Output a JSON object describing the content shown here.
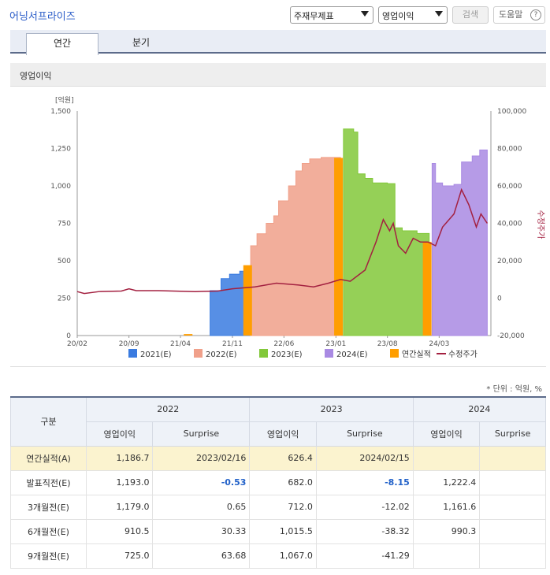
{
  "header": {
    "title": "어닝서프라이즈",
    "select_subject": "주재무제표",
    "select_metric": "영업이익",
    "search_label": "검색",
    "help_label": "도움말",
    "help_icon_glyph": "?"
  },
  "tabs": [
    {
      "label": "연간",
      "active": true
    },
    {
      "label": "분기",
      "active": false
    }
  ],
  "section_title": "영업이익",
  "chart_data": {
    "type": "area",
    "y_unit_label": "[억원]",
    "y_left_ticks": [
      "1,500",
      "1,250",
      "1,000",
      "750",
      "500",
      "250",
      "0"
    ],
    "y_left_range": [
      0,
      1500
    ],
    "y_right_label": "수정주가",
    "y_right_ticks": [
      "100,000",
      "80,000",
      "60,000",
      "40,000",
      "20,000",
      "0",
      "-20,000"
    ],
    "y_right_range": [
      -20000,
      100000
    ],
    "x_ticks": [
      "20/02",
      "20/09",
      "21/04",
      "21/11",
      "22/06",
      "23/01",
      "23/08",
      "24/03"
    ],
    "x_range": [
      "2020-02",
      "2024-09"
    ],
    "legend": [
      {
        "label": "2021(E)",
        "color": "#3a7be0",
        "kind": "square"
      },
      {
        "label": "2022(E)",
        "color": "#f0a08a",
        "kind": "square"
      },
      {
        "label": "2023(E)",
        "color": "#82c83a",
        "kind": "square"
      },
      {
        "label": "2024(E)",
        "color": "#a98ae3",
        "kind": "square"
      },
      {
        "label": "연간실적",
        "color": "#ff9e00",
        "kind": "square"
      },
      {
        "label": "수정주가",
        "color": "#a32040",
        "kind": "line"
      }
    ],
    "estimate_series": [
      {
        "name": "2021(E)",
        "color": "#3a7be0",
        "points": [
          [
            "2021-08-01",
            300
          ],
          [
            "2021-09-15",
            380
          ],
          [
            "2021-10-20",
            410
          ],
          [
            "2021-12-01",
            430
          ],
          [
            "2022-01-15",
            430
          ]
        ]
      },
      {
        "name": "2022(E)",
        "color": "#f0a08a",
        "points": [
          [
            "2022-01-15",
            600
          ],
          [
            "2022-02-10",
            680
          ],
          [
            "2022-03-20",
            750
          ],
          [
            "2022-04-20",
            800
          ],
          [
            "2022-05-10",
            900
          ],
          [
            "2022-06-20",
            1000
          ],
          [
            "2022-07-20",
            1100
          ],
          [
            "2022-08-15",
            1150
          ],
          [
            "2022-09-15",
            1180
          ],
          [
            "2022-11-01",
            1190
          ],
          [
            "2023-01-20",
            1193
          ]
        ]
      },
      {
        "name": "2023(E)",
        "color": "#82c83a",
        "points": [
          [
            "2023-02-01",
            1380
          ],
          [
            "2023-03-15",
            1360
          ],
          [
            "2023-04-01",
            1080
          ],
          [
            "2023-05-01",
            1050
          ],
          [
            "2023-06-01",
            1020
          ],
          [
            "2023-08-01",
            1015
          ],
          [
            "2023-09-01",
            720
          ],
          [
            "2023-10-01",
            700
          ],
          [
            "2023-12-01",
            682
          ],
          [
            "2024-01-20",
            682
          ]
        ]
      },
      {
        "name": "2024(E)",
        "color": "#a98ae3",
        "points": [
          [
            "2024-02-01",
            1150
          ],
          [
            "2024-02-15",
            1020
          ],
          [
            "2024-03-15",
            1000
          ],
          [
            "2024-05-01",
            1010
          ],
          [
            "2024-06-01",
            1160
          ],
          [
            "2024-07-15",
            1200
          ],
          [
            "2024-08-15",
            1240
          ],
          [
            "2024-09-15",
            1230
          ]
        ]
      }
    ],
    "actual_bars": [
      {
        "date": "2021-05-01",
        "value": 10
      },
      {
        "date": "2022-01-01",
        "value": 470
      },
      {
        "date": "2023-01-10",
        "value": 1187
      },
      {
        "date": "2024-01-10",
        "value": 626
      }
    ],
    "price_series": [
      [
        "2020-02-01",
        3500
      ],
      [
        "2020-03-01",
        2500
      ],
      [
        "2020-05-01",
        3500
      ],
      [
        "2020-08-01",
        3800
      ],
      [
        "2020-09-01",
        5000
      ],
      [
        "2020-10-01",
        4000
      ],
      [
        "2021-01-01",
        4000
      ],
      [
        "2021-06-01",
        3500
      ],
      [
        "2021-09-01",
        3800
      ],
      [
        "2021-11-01",
        5000
      ],
      [
        "2022-02-01",
        6000
      ],
      [
        "2022-05-01",
        8000
      ],
      [
        "2022-08-01",
        7000
      ],
      [
        "2022-10-01",
        6000
      ],
      [
        "2022-12-01",
        8000
      ],
      [
        "2023-01-20",
        10000
      ],
      [
        "2023-03-01",
        9000
      ],
      [
        "2023-05-01",
        15000
      ],
      [
        "2023-06-15",
        30000
      ],
      [
        "2023-07-15",
        42000
      ],
      [
        "2023-08-10",
        36000
      ],
      [
        "2023-08-25",
        40000
      ],
      [
        "2023-09-15",
        28000
      ],
      [
        "2023-10-15",
        24000
      ],
      [
        "2023-11-15",
        32000
      ],
      [
        "2023-12-15",
        30000
      ],
      [
        "2024-01-15",
        30000
      ],
      [
        "2024-02-15",
        28000
      ],
      [
        "2024-03-15",
        38000
      ],
      [
        "2024-05-01",
        45000
      ],
      [
        "2024-06-01",
        58000
      ],
      [
        "2024-07-01",
        50000
      ],
      [
        "2024-08-01",
        38000
      ],
      [
        "2024-08-20",
        45000
      ],
      [
        "2024-09-15",
        40000
      ]
    ]
  },
  "unit_note": "* 단위 : 억원, %",
  "table": {
    "header_label": "구분",
    "years": [
      "2022",
      "2023",
      "2024"
    ],
    "subheaders": [
      "영업이익",
      "Surprise"
    ],
    "rows": [
      {
        "label": "연간실적(A)",
        "highlight": true,
        "cells": [
          "1,186.7",
          "2023/02/16",
          "626.4",
          "2024/02/15",
          "",
          ""
        ]
      },
      {
        "label": "발표직전(E)",
        "highlight": false,
        "cells": [
          "1,193.0",
          "-0.53",
          "682.0",
          "-8.15",
          "1,222.4",
          ""
        ],
        "blue": [
          1,
          3
        ]
      },
      {
        "label": "3개월전(E)",
        "highlight": false,
        "cells": [
          "1,179.0",
          "0.65",
          "712.0",
          "-12.02",
          "1,161.6",
          ""
        ]
      },
      {
        "label": "6개월전(E)",
        "highlight": false,
        "cells": [
          "910.5",
          "30.33",
          "1,015.5",
          "-38.32",
          "990.3",
          ""
        ]
      },
      {
        "label": "9개월전(E)",
        "highlight": false,
        "cells": [
          "725.0",
          "63.68",
          "1,067.0",
          "-41.29",
          "",
          ""
        ]
      }
    ]
  }
}
